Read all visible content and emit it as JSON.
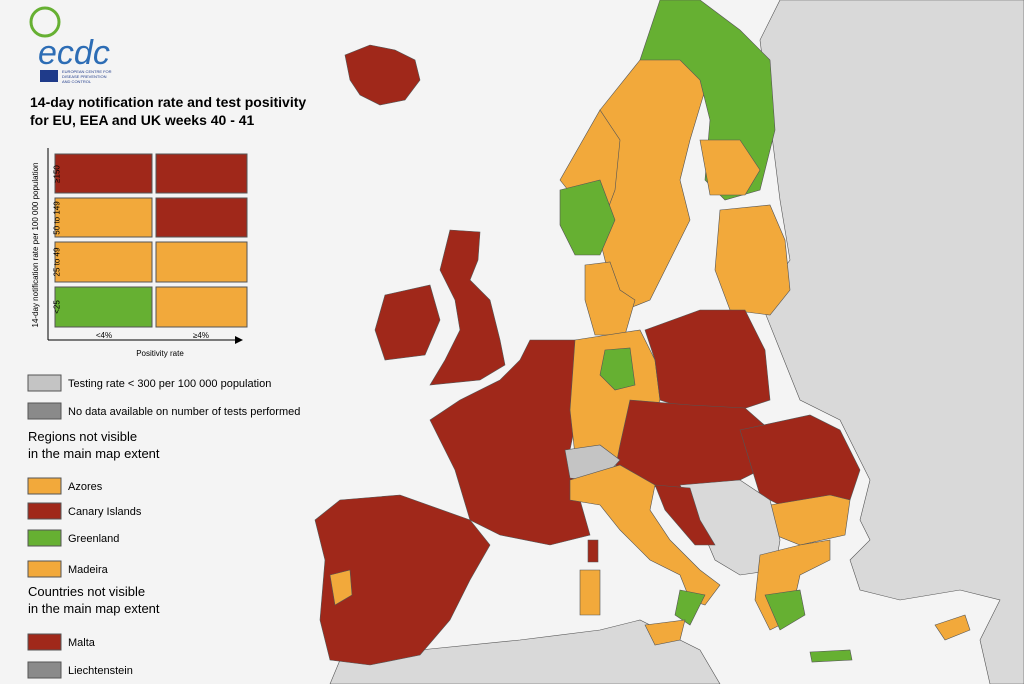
{
  "logo": {
    "name": "ecdc",
    "subtitle": [
      "EUROPEAN CENTRE FOR",
      "DISEASE PREVENTION",
      "AND CONTROL"
    ]
  },
  "title": [
    "14-day notification rate and test positivity",
    "for EU, EEA and UK weeks 40 - 41"
  ],
  "matrix": {
    "y_label": "14-day notification rate per 100 000 population",
    "row_labels": [
      "≥150",
      "50 to 149",
      "25 to 49",
      "<25"
    ],
    "column_labels": [
      "<4%",
      "≥4%"
    ],
    "x_label": "Positivity rate"
  },
  "legend": {
    "testing": "Testing rate < 300 per 100 000 population",
    "no_data": "No data available on number of tests performed"
  },
  "regions": {
    "heading": [
      "Regions not visible",
      "in the main map extent"
    ],
    "items": [
      "Azores",
      "Canary Islands",
      "Greenland",
      "Madeira"
    ]
  },
  "countries": {
    "heading": [
      "Countries not visible",
      "in the main map extent"
    ],
    "items": [
      "Malta",
      "Liechtenstein"
    ]
  }
}
